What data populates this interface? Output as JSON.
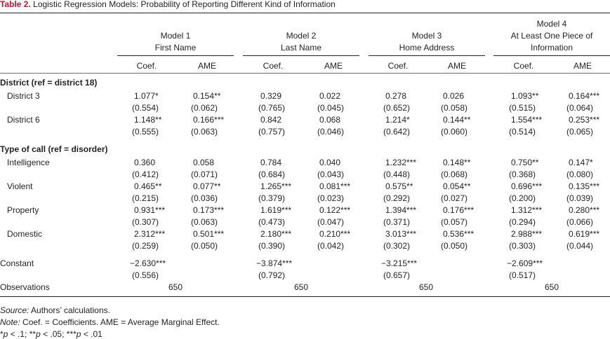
{
  "caption": {
    "label": "Table 2.",
    "title": "Logistic Regression Models: Probability of Reporting Different Kind of Information"
  },
  "models": [
    {
      "line1": "Model 1",
      "line2": "First Name",
      "line0": ""
    },
    {
      "line1": "Model 2",
      "line2": "Last Name",
      "line0": ""
    },
    {
      "line1": "Model 3",
      "line2": "Home Address",
      "line0": ""
    },
    {
      "line0": "Model 4",
      "line1": "At Least One Piece of",
      "line2": "Information"
    }
  ],
  "subheaders": [
    "Coef.",
    "AME",
    "Coef.",
    "AME",
    "Coef.",
    "AME",
    "Coef.",
    "AME"
  ],
  "sections": {
    "district": "District (ref = district 18)",
    "call": "Type of call (ref = disorder)"
  },
  "rows": [
    {
      "label": "District 3",
      "vals": [
        "1.077*",
        "0.154**",
        "0.329",
        "0.022",
        "0.278",
        "0.026",
        "1.093**",
        "0.164***"
      ],
      "se": [
        "(0.554)",
        "(0.062)",
        "(0.765)",
        "(0.045)",
        "(0.652)",
        "(0.058)",
        "(0.515)",
        "(0.064)"
      ]
    },
    {
      "label": "District 6",
      "vals": [
        "1.148**",
        "0.166***",
        "0.842",
        "0.068",
        "1.214*",
        "0.144**",
        "1.554***",
        "0.253***"
      ],
      "se": [
        "(0.555)",
        "(0.063)",
        "(0.757)",
        "(0.046)",
        "(0.642)",
        "(0.060)",
        "(0.514)",
        "(0.065)"
      ]
    },
    {
      "label": "Intelligence",
      "vals": [
        "0.360",
        "0.058",
        "0.784",
        "0.040",
        "1.232***",
        "0.148**",
        "0.750**",
        "0.147*"
      ],
      "se": [
        "(0.412)",
        "(0.071)",
        "(0.684)",
        "(0.043)",
        "(0.448)",
        "(0.068)",
        "(0.368)",
        "(0.080)"
      ]
    },
    {
      "label": "Violent",
      "vals": [
        "0.465**",
        "0.077**",
        "1.265***",
        "0.081***",
        "0.575**",
        "0.054**",
        "0.696***",
        "0.135***"
      ],
      "se": [
        "(0.215)",
        "(0.036)",
        "(0.379)",
        "(0.023)",
        "(0.292)",
        "(0.027)",
        "(0.200)",
        "(0.039)"
      ]
    },
    {
      "label": "Property",
      "vals": [
        "0.931***",
        "0.173***",
        "1.619***",
        "0.122***",
        "1.394***",
        "0.176***",
        "1.312***",
        "0.280***"
      ],
      "se": [
        "(0.307)",
        "(0.063)",
        "(0.473)",
        "(0.047)",
        "(0.371)",
        "(0.057)",
        "(0.294)",
        "(0.066)"
      ]
    },
    {
      "label": "Domestic",
      "vals": [
        "2.312***",
        "0.501***",
        "2.180***",
        "0.210***",
        "3.013***",
        "0.536***",
        "2.988***",
        "0.619***"
      ],
      "se": [
        "(0.259)",
        "(0.050)",
        "(0.390)",
        "(0.042)",
        "(0.302)",
        "(0.050)",
        "(0.303)",
        "(0.044)"
      ]
    }
  ],
  "constant": {
    "label": "Constant",
    "vals": [
      "−2.630***",
      "−3.874***",
      "−3.215***",
      "−2.609***"
    ],
    "se": [
      "(0.556)",
      "(0.792)",
      "(0.657)",
      "(0.517)"
    ]
  },
  "observations": {
    "label": "Observations",
    "vals": [
      "650",
      "650",
      "650",
      "650"
    ]
  },
  "notes": {
    "source_label": "Source:",
    "source_text": " Authors’ calculations.",
    "note_label": "Note:",
    "note_text": " Coef. = Coefficients. AME = Average Marginal Effect.",
    "sig": [
      {
        "t": "*",
        "i": false
      },
      {
        "t": "p",
        "i": true
      },
      {
        "t": " < .1; **",
        "i": false
      },
      {
        "t": "p",
        "i": true
      },
      {
        "t": " < .05; ***",
        "i": false
      },
      {
        "t": "p",
        "i": true
      },
      {
        "t": " < .01",
        "i": false
      }
    ]
  }
}
